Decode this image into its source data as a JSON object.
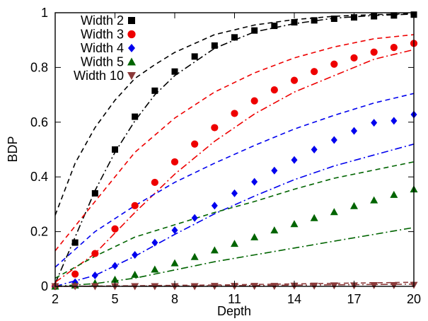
{
  "chart_data": {
    "type": "scatter",
    "title": "",
    "xlabel": "Depth",
    "ylabel": "BDP",
    "xlim": [
      2,
      20
    ],
    "ylim": [
      0,
      1
    ],
    "x_ticks": [
      2,
      5,
      8,
      11,
      14,
      17,
      20
    ],
    "y_ticks": [
      0,
      0.2,
      0.4,
      0.6,
      0.8,
      1
    ],
    "grid": false,
    "legend": "top-left",
    "x": [
      2,
      3,
      4,
      5,
      6,
      7,
      8,
      9,
      10,
      11,
      12,
      13,
      14,
      15,
      16,
      17,
      18,
      19,
      20
    ],
    "series": [
      {
        "name": "Width 2",
        "color": "#000000",
        "marker": "square",
        "values": [
          0,
          0.16,
          0.34,
          0.5,
          0.62,
          0.715,
          0.785,
          0.84,
          0.88,
          0.91,
          0.935,
          0.952,
          0.965,
          0.972,
          0.978,
          0.983,
          0.987,
          0.99,
          0.993
        ]
      },
      {
        "name": "Width 3",
        "color": "#ee0000",
        "marker": "circle",
        "values": [
          0,
          0.045,
          0.12,
          0.21,
          0.295,
          0.38,
          0.455,
          0.52,
          0.58,
          0.632,
          0.678,
          0.718,
          0.753,
          0.785,
          0.812,
          0.835,
          0.856,
          0.873,
          0.888
        ]
      },
      {
        "name": "Width 4",
        "color": "#0000ee",
        "marker": "diamond",
        "values": [
          0,
          0.015,
          0.04,
          0.075,
          0.115,
          0.16,
          0.205,
          0.25,
          0.295,
          0.34,
          0.382,
          0.423,
          0.462,
          0.5,
          0.535,
          0.568,
          0.598,
          0.605,
          0.628
        ]
      },
      {
        "name": "Width 5",
        "color": "#006400",
        "marker": "triangle-up",
        "values": [
          0,
          0.004,
          0.012,
          0.025,
          0.043,
          0.062,
          0.085,
          0.108,
          0.132,
          0.156,
          0.18,
          0.205,
          0.228,
          0.25,
          0.272,
          0.294,
          0.315,
          0.335,
          0.355
        ]
      },
      {
        "name": "Width 10",
        "color": "#8b3a3a",
        "marker": "triangle-down",
        "values": [
          0,
          0.0,
          0.0,
          0.0,
          0.0,
          0.0,
          0.0,
          0.0,
          0.001,
          0.001,
          0.001,
          0.001,
          0.002,
          0.002,
          0.003,
          0.003,
          0.004,
          0.004,
          0.005
        ]
      }
    ],
    "curves": [
      {
        "color": "#000000",
        "style": "dashed",
        "x": [
          2,
          3,
          4,
          5,
          6,
          7,
          8,
          10,
          12,
          14,
          16,
          18,
          20
        ],
        "values": [
          0.26,
          0.45,
          0.58,
          0.68,
          0.76,
          0.81,
          0.855,
          0.92,
          0.955,
          0.975,
          0.987,
          0.993,
          0.997
        ]
      },
      {
        "color": "#000000",
        "style": "dashdot",
        "x": [
          2,
          3,
          4,
          5,
          6,
          7,
          8,
          10,
          12,
          14,
          16,
          18,
          20
        ],
        "values": [
          0.01,
          0.18,
          0.35,
          0.49,
          0.605,
          0.7,
          0.77,
          0.87,
          0.93,
          0.96,
          0.98,
          0.99,
          0.995
        ]
      },
      {
        "color": "#ee0000",
        "style": "dashed",
        "x": [
          2,
          4,
          6,
          8,
          10,
          12,
          14,
          16,
          18,
          20
        ],
        "values": [
          0.13,
          0.31,
          0.49,
          0.615,
          0.71,
          0.78,
          0.835,
          0.875,
          0.905,
          0.92
        ]
      },
      {
        "color": "#ee0000",
        "style": "dashdot",
        "x": [
          2,
          4,
          6,
          8,
          10,
          12,
          14,
          16,
          18,
          20
        ],
        "values": [
          0.015,
          0.12,
          0.27,
          0.41,
          0.53,
          0.63,
          0.71,
          0.77,
          0.83,
          0.865
        ]
      },
      {
        "color": "#0000ee",
        "style": "dashed",
        "x": [
          2,
          4,
          6,
          8,
          10,
          12,
          14,
          16,
          18,
          20
        ],
        "values": [
          0.07,
          0.2,
          0.295,
          0.38,
          0.45,
          0.515,
          0.575,
          0.625,
          0.67,
          0.705
        ]
      },
      {
        "color": "#0000ee",
        "style": "dashdot",
        "x": [
          2,
          4,
          6,
          8,
          10,
          12,
          14,
          16,
          18,
          20
        ],
        "values": [
          0.0,
          0.04,
          0.11,
          0.19,
          0.265,
          0.33,
          0.39,
          0.44,
          0.48,
          0.52
        ]
      },
      {
        "color": "#006400",
        "style": "dashed",
        "x": [
          2,
          4,
          6,
          8,
          10,
          12,
          14,
          16,
          18,
          20
        ],
        "values": [
          0.03,
          0.11,
          0.18,
          0.225,
          0.27,
          0.31,
          0.355,
          0.395,
          0.425,
          0.455
        ]
      },
      {
        "color": "#006400",
        "style": "dashdot",
        "x": [
          2,
          4,
          6,
          8,
          10,
          12,
          14,
          16,
          18,
          20
        ],
        "values": [
          0.0,
          0.01,
          0.03,
          0.06,
          0.09,
          0.115,
          0.14,
          0.165,
          0.19,
          0.215
        ]
      },
      {
        "color": "#8b3a3a",
        "style": "dashed",
        "x": [
          2,
          10,
          20
        ],
        "values": [
          0.0,
          0.005,
          0.015
        ]
      },
      {
        "color": "#8b3a3a",
        "style": "dashdot",
        "x": [
          2,
          10,
          20
        ],
        "values": [
          0.0,
          0.002,
          0.008
        ]
      }
    ]
  }
}
